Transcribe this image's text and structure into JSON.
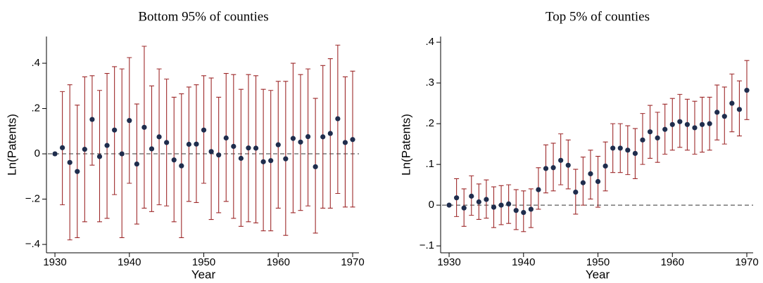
{
  "chart_data": [
    {
      "type": "errorbar",
      "title": "Bottom 95% of counties",
      "x_label": "Year",
      "y_label": "Ln(Patents)",
      "x": [
        1930,
        1931,
        1932,
        1933,
        1934,
        1935,
        1936,
        1937,
        1938,
        1939,
        1940,
        1941,
        1942,
        1943,
        1944,
        1945,
        1946,
        1947,
        1948,
        1949,
        1950,
        1951,
        1952,
        1953,
        1954,
        1955,
        1956,
        1957,
        1958,
        1959,
        1960,
        1961,
        1962,
        1963,
        1964,
        1965,
        1966,
        1967,
        1968,
        1969,
        1970
      ],
      "values": [
        0,
        0.027,
        -0.038,
        -0.078,
        0.02,
        0.152,
        -0.012,
        0.037,
        0.105,
        0,
        0.147,
        -0.045,
        0.117,
        0.022,
        0.075,
        0.05,
        -0.027,
        -0.053,
        0.042,
        0.043,
        0.105,
        0.01,
        -0.005,
        0.07,
        0.033,
        -0.02,
        0.026,
        0.025,
        -0.035,
        -0.03,
        0.04,
        -0.022,
        0.068,
        0.052,
        0.076,
        -0.057,
        0.075,
        0.09,
        0.155,
        0.05,
        0.063
      ],
      "ci_low": [
        0,
        -0.225,
        -0.38,
        -0.37,
        -0.3,
        -0.05,
        -0.3,
        -0.285,
        -0.18,
        -0.37,
        -0.13,
        -0.31,
        -0.24,
        -0.255,
        -0.225,
        -0.23,
        -0.3,
        -0.37,
        -0.21,
        -0.215,
        -0.13,
        -0.29,
        -0.26,
        -0.21,
        -0.285,
        -0.32,
        -0.3,
        -0.305,
        -0.34,
        -0.34,
        -0.24,
        -0.36,
        -0.26,
        -0.25,
        -0.23,
        -0.35,
        -0.24,
        -0.24,
        -0.175,
        -0.235,
        -0.235
      ],
      "ci_high": [
        0,
        0.275,
        0.305,
        0.215,
        0.34,
        0.345,
        0.28,
        0.355,
        0.385,
        0.375,
        0.425,
        0.22,
        0.475,
        0.3,
        0.375,
        0.33,
        0.25,
        0.265,
        0.295,
        0.305,
        0.345,
        0.335,
        0.25,
        0.355,
        0.35,
        0.285,
        0.35,
        0.345,
        0.285,
        0.28,
        0.32,
        0.32,
        0.4,
        0.35,
        0.375,
        0.245,
        0.39,
        0.42,
        0.48,
        0.34,
        0.365
      ],
      "dot_color": "#1f2d4d",
      "bar_color": "#9e2a2b",
      "xlim": [
        1929.05,
        1970.85
      ],
      "xticks": [
        1930,
        1940,
        1950,
        1960,
        1970
      ],
      "ylim": [
        -0.437,
        0.518
      ],
      "yticks": [
        {
          "value": -0.4,
          "label": "−.4"
        },
        {
          "value": -0.2,
          "label": "−.2"
        },
        0,
        {
          "value": 0.2,
          "label": ".2"
        },
        {
          "value": 0.4,
          "label": ".4"
        }
      ]
    },
    {
      "type": "errorbar",
      "title": "Top 5% of counties",
      "x_label": "Year",
      "y_label": "Ln(Patents)",
      "x": [
        1930,
        1931,
        1932,
        1933,
        1934,
        1935,
        1936,
        1937,
        1938,
        1939,
        1940,
        1941,
        1942,
        1943,
        1944,
        1945,
        1946,
        1947,
        1948,
        1949,
        1950,
        1951,
        1952,
        1953,
        1954,
        1955,
        1956,
        1957,
        1958,
        1959,
        1960,
        1961,
        1962,
        1963,
        1964,
        1965,
        1966,
        1967,
        1968,
        1969,
        1970
      ],
      "values": [
        0,
        0.018,
        -0.007,
        0.022,
        0.008,
        0.014,
        -0.005,
        0,
        0.003,
        -0.013,
        -0.018,
        -0.01,
        0.038,
        0.09,
        0.092,
        0.11,
        0.098,
        0.032,
        0.055,
        0.077,
        0.058,
        0.096,
        0.14,
        0.14,
        0.135,
        0.127,
        0.16,
        0.18,
        0.165,
        0.186,
        0.198,
        0.205,
        0.198,
        0.19,
        0.198,
        0.2,
        0.228,
        0.218,
        0.25,
        0.235,
        0.282
      ],
      "ci_low": [
        0,
        -0.028,
        -0.052,
        -0.025,
        -0.035,
        -0.032,
        -0.055,
        -0.048,
        -0.045,
        -0.06,
        -0.065,
        -0.055,
        -0.01,
        0.03,
        0.035,
        0.05,
        0.04,
        -0.022,
        0,
        0.015,
        -0.005,
        0.035,
        0.08,
        0.08,
        0.075,
        0.065,
        0.1,
        0.115,
        0.105,
        0.125,
        0.135,
        0.142,
        0.135,
        0.125,
        0.13,
        0.135,
        0.16,
        0.15,
        0.18,
        0.17,
        0.21
      ],
      "ci_high": [
        0,
        0.065,
        0.04,
        0.072,
        0.052,
        0.062,
        0.045,
        0.048,
        0.05,
        0.038,
        0.035,
        0.04,
        0.092,
        0.148,
        0.152,
        0.175,
        0.16,
        0.088,
        0.118,
        0.135,
        0.12,
        0.155,
        0.2,
        0.2,
        0.195,
        0.188,
        0.225,
        0.245,
        0.228,
        0.248,
        0.262,
        0.272,
        0.26,
        0.255,
        0.265,
        0.265,
        0.295,
        0.29,
        0.322,
        0.305,
        0.355
      ],
      "dot_color": "#1f2d4d",
      "bar_color": "#9e2a2b",
      "xlim": [
        1929.05,
        1970.85
      ],
      "xticks": [
        1930,
        1940,
        1950,
        1960,
        1970
      ],
      "ylim": [
        -0.117,
        0.414
      ],
      "yticks": [
        {
          "value": -0.1,
          "label": "−.1"
        },
        0,
        {
          "value": 0.1,
          "label": ".1"
        },
        {
          "value": 0.2,
          "label": ".2"
        },
        {
          "value": 0.3,
          "label": ".3"
        },
        {
          "value": 0.4,
          "label": ".4"
        }
      ]
    }
  ]
}
